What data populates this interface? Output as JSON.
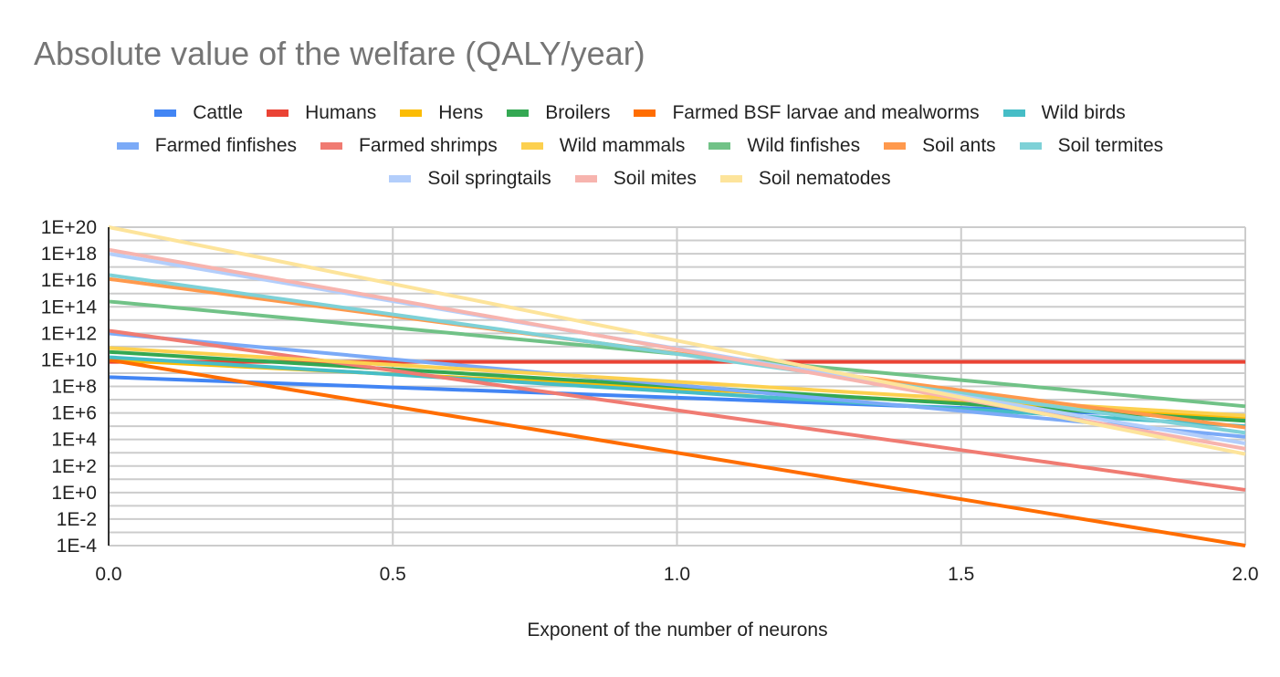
{
  "chart_data": {
    "type": "line",
    "title": "Absolute value of the welfare (QALY/year)",
    "xlabel": "Exponent of the number of neurons",
    "ylabel": "",
    "y_scale": "log10",
    "xlim": [
      0.0,
      2.0
    ],
    "ylim_log10": [
      -4,
      20
    ],
    "x_ticks": [
      "0.0",
      "0.5",
      "1.0",
      "1.5",
      "2.0"
    ],
    "y_ticks": [
      "1E+20",
      "1E+18",
      "1E+16",
      "1E+14",
      "1E+12",
      "1E+10",
      "1E+8",
      "1E+6",
      "1E+4",
      "1E+2",
      "1E+0",
      "1E-2",
      "1E-4"
    ],
    "grid": true,
    "legend_position": "top",
    "x": [
      0.0,
      2.0
    ],
    "series": [
      {
        "name": "Cattle",
        "color": "#4285f4",
        "log10_values": [
          8.7,
          5.6
        ]
      },
      {
        "name": "Humans",
        "color": "#ea4335",
        "log10_values": [
          9.85,
          9.85
        ]
      },
      {
        "name": "Hens",
        "color": "#fbbc04",
        "log10_values": [
          10.0,
          5.7
        ]
      },
      {
        "name": "Broilers",
        "color": "#34a853",
        "log10_values": [
          10.6,
          5.4
        ]
      },
      {
        "name": "Farmed BSF larvae and mealworms",
        "color": "#ff6d01",
        "log10_values": [
          10.0,
          -4.0
        ]
      },
      {
        "name": "Wild birds",
        "color": "#46bdc6",
        "log10_values": [
          10.2,
          5.0
        ]
      },
      {
        "name": "Farmed finfishes",
        "color": "#7baaf7",
        "log10_values": [
          12.0,
          4.2
        ]
      },
      {
        "name": "Farmed shrimps",
        "color": "#f07b72",
        "log10_values": [
          12.2,
          0.2
        ]
      },
      {
        "name": "Wild mammals",
        "color": "#fcd04f",
        "log10_values": [
          10.9,
          5.8
        ]
      },
      {
        "name": "Wild finfishes",
        "color": "#71c287",
        "log10_values": [
          14.4,
          6.5
        ]
      },
      {
        "name": "Soil ants",
        "color": "#ff994d",
        "log10_values": [
          16.1,
          4.9
        ]
      },
      {
        "name": "Soil termites",
        "color": "#7ed1d7",
        "log10_values": [
          16.4,
          4.5
        ]
      },
      {
        "name": "Soil springtails",
        "color": "#b3cefb",
        "log10_values": [
          18.0,
          3.7
        ]
      },
      {
        "name": "Soil mites",
        "color": "#f7b4ae",
        "log10_values": [
          18.3,
          3.3
        ]
      },
      {
        "name": "Soil nematodes",
        "color": "#fde49b",
        "log10_values": [
          20.0,
          2.9
        ]
      }
    ]
  },
  "legend_rows": [
    [
      0,
      1,
      2,
      3,
      4,
      5
    ],
    [
      6,
      7,
      8,
      9,
      10,
      11
    ],
    [
      12,
      13,
      14
    ]
  ]
}
